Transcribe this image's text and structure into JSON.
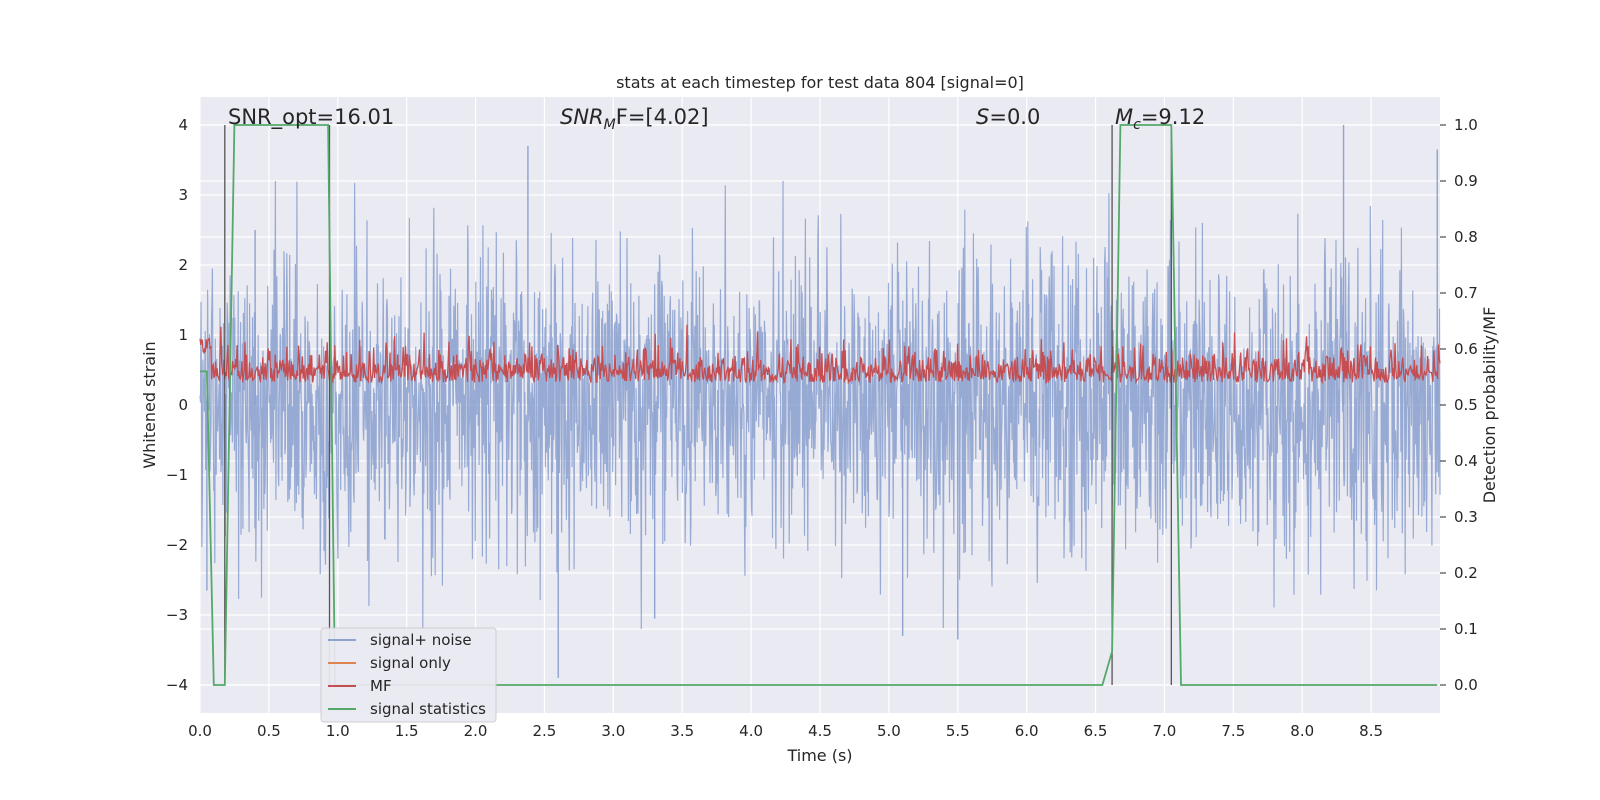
{
  "chart_data": {
    "type": "line",
    "title": "stats at each timestep for test data 804 [signal=0]",
    "xlabel": "Time (s)",
    "ylabel": "Whitened strain",
    "ylabel_right": "Detection probability/MF",
    "xlim": [
      0.0,
      9.0
    ],
    "ylim": [
      -4.4,
      4.4
    ],
    "ylim_right": [
      -0.05,
      1.05
    ],
    "xticks": [
      "0.0",
      "0.5",
      "1.0",
      "1.5",
      "2.0",
      "2.5",
      "3.0",
      "3.5",
      "4.0",
      "4.5",
      "5.0",
      "5.5",
      "6.0",
      "6.5",
      "7.0",
      "7.5",
      "8.0",
      "8.5"
    ],
    "xtick_values": [
      0.0,
      0.5,
      1.0,
      1.5,
      2.0,
      2.5,
      3.0,
      3.5,
      4.0,
      4.5,
      5.0,
      5.5,
      6.0,
      6.5,
      7.0,
      7.5,
      8.0,
      8.5
    ],
    "yticks": [
      "−4",
      "−3",
      "−2",
      "−1",
      "0",
      "1",
      "2",
      "3",
      "4"
    ],
    "ytick_values": [
      -4,
      -3,
      -2,
      -1,
      0,
      1,
      2,
      3,
      4
    ],
    "yticks_right": [
      "0.0",
      "0.1",
      "0.2",
      "0.3",
      "0.4",
      "0.5",
      "0.6",
      "0.7",
      "0.8",
      "0.9",
      "1.0"
    ],
    "ytick_right_values": [
      0.0,
      0.1,
      0.2,
      0.3,
      0.4,
      0.5,
      0.6,
      0.7,
      0.8,
      0.9,
      1.0
    ],
    "grid": true,
    "legend_position": "lower-left",
    "annotations": {
      "snr_opt": "SNR_opt=16.01",
      "snr_mf_base": "SNR",
      "snr_mf_sub": "M",
      "snr_mf_rest": "F=[4.02]",
      "s_stat_base": "S",
      "s_stat_rest": "=0.0",
      "mc_base": "M",
      "mc_sub": "c",
      "mc_rest": "=9.12"
    },
    "series": [
      {
        "name": "signal+ noise",
        "color": "#8ea3cf",
        "axis": "left",
        "description_values": "whitened strain noise, range approx -3.9 to 4.0",
        "peaks": [
          [
            0.4,
            2.5
          ],
          [
            2.38,
            3.7
          ],
          [
            8.3,
            4.0
          ],
          [
            8.98,
            3.65
          ],
          [
            2.6,
            -3.9
          ],
          [
            3.3,
            -3.05
          ],
          [
            5.1,
            -3.3
          ],
          [
            5.5,
            -3.35
          ],
          [
            0.05,
            -2.65
          ]
        ]
      },
      {
        "name": "signal only",
        "color": "#dd8452",
        "axis": "left",
        "values": []
      },
      {
        "name": "MF",
        "color": "#c44e52",
        "axis": "right",
        "description_values": "matched filter output, approx 0.5 to 0.6 with peak 0.62 at t≈0.05"
      },
      {
        "name": "signal statistics",
        "color": "#55a868",
        "axis": "right",
        "x": [
          0.0,
          0.05,
          0.1,
          0.18,
          0.25,
          0.93,
          0.98,
          1.05,
          6.55,
          6.62,
          6.68,
          7.05,
          7.12,
          8.98
        ],
        "values": [
          0.56,
          0.56,
          0.0,
          0.0,
          1.0,
          1.0,
          0.0,
          0.0,
          0.0,
          0.06,
          1.0,
          1.0,
          0.0,
          0.0
        ]
      }
    ],
    "vertical_lines": [
      0.18,
      0.94,
      6.62,
      7.05
    ],
    "vertical_line_range": [
      0.0,
      1.0
    ]
  }
}
